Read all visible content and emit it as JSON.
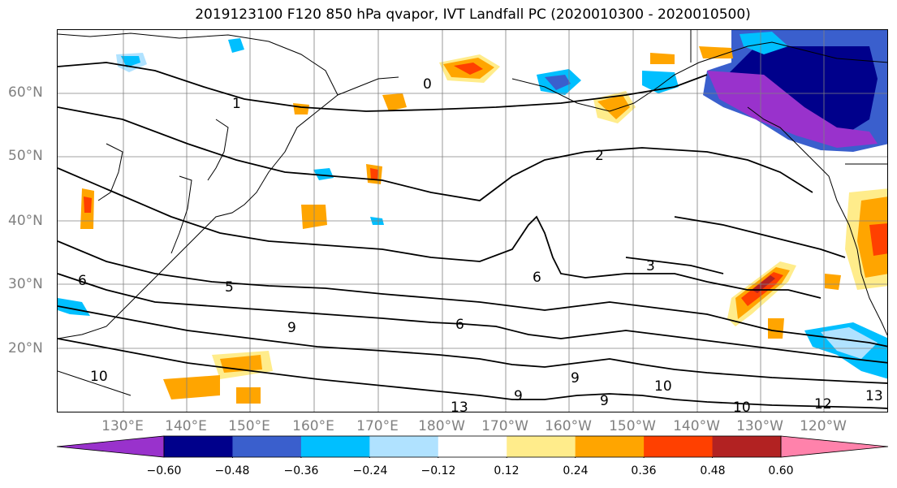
{
  "title": "2019123100 F120 850 hPa qvapor, IVT Landfall PC (2020010300 - 2020010500)",
  "lat_labels": [
    "60°N",
    "50°N",
    "40°N",
    "30°N",
    "20°N"
  ],
  "lon_labels": [
    "130°E",
    "140°E",
    "150°E",
    "160°E",
    "170°E",
    "180°W",
    "170°W",
    "160°W",
    "150°W",
    "140°W",
    "130°W",
    "120°W"
  ],
  "contour_labels": [
    "0",
    "1",
    "2",
    "3",
    "5",
    "6",
    "6",
    "9",
    "9",
    "9",
    "9",
    "10",
    "10",
    "10",
    "12",
    "13",
    "6",
    "13"
  ],
  "colorbar": {
    "ticks": [
      "−0.60",
      "−0.48",
      "−0.36",
      "−0.24",
      "−0.12",
      "0.12",
      "0.24",
      "0.36",
      "0.48",
      "0.60"
    ],
    "colors": [
      "#9932cc",
      "#00008b",
      "#3a5fcd",
      "#00bfff",
      "#b0e2ff",
      "#ffffff",
      "#ffec8b",
      "#ffa500",
      "#ff4000",
      "#b22222",
      "#ff82ab"
    ]
  }
}
